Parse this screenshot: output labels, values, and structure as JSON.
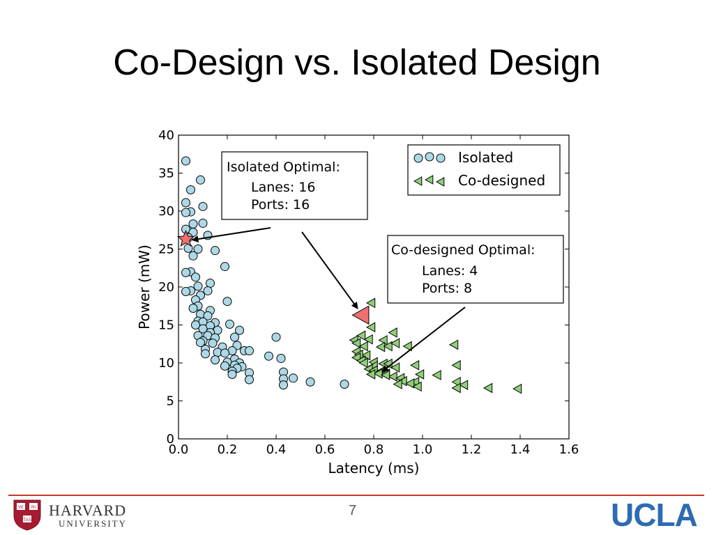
{
  "slide": {
    "title": "Co-Design vs. Isolated Design",
    "page_number": "7"
  },
  "logos": {
    "harvard_name": "HARVARD",
    "harvard_sub": "UNIVERSITY",
    "harvard_shield_text": [
      "VE",
      "RI",
      "TAS"
    ],
    "ucla": "UCLA"
  },
  "colors": {
    "isolated_fill": "#add8e6",
    "codesigned_fill": "#90d078",
    "optimal_fill": "#f07070",
    "marker_edge": "#000000",
    "footer_line": "#c0392b",
    "ucla_blue": "#2d6bb3"
  },
  "chart_data": {
    "type": "scatter",
    "xlabel": "Latency (ms)",
    "ylabel": "Power (mW)",
    "xlim": [
      0.0,
      1.6
    ],
    "ylim": [
      0,
      40
    ],
    "xticks": [
      "0.0",
      "0.2",
      "0.4",
      "0.6",
      "0.8",
      "1.0",
      "1.2",
      "1.4",
      "1.6"
    ],
    "yticks": [
      "0",
      "5",
      "10",
      "15",
      "20",
      "25",
      "30",
      "35",
      "40"
    ],
    "legend_position": "top-right",
    "series": [
      {
        "name": "Isolated",
        "marker": "circle",
        "points": [
          [
            0.03,
            36.6
          ],
          [
            0.09,
            34.1
          ],
          [
            0.05,
            32.8
          ],
          [
            0.03,
            31.1
          ],
          [
            0.1,
            30.6
          ],
          [
            0.05,
            29.9
          ],
          [
            0.03,
            29.8
          ],
          [
            0.06,
            28.3
          ],
          [
            0.1,
            28.4
          ],
          [
            0.03,
            27.6
          ],
          [
            0.06,
            27.2
          ],
          [
            0.12,
            26.8
          ],
          [
            0.04,
            26.5
          ],
          [
            0.08,
            25.0
          ],
          [
            0.04,
            25.1
          ],
          [
            0.15,
            24.8
          ],
          [
            0.06,
            24.1
          ],
          [
            0.19,
            22.7
          ],
          [
            0.05,
            22.0
          ],
          [
            0.03,
            21.9
          ],
          [
            0.07,
            21.3
          ],
          [
            0.13,
            20.5
          ],
          [
            0.08,
            20.1
          ],
          [
            0.05,
            19.5
          ],
          [
            0.03,
            19.4
          ],
          [
            0.12,
            19.5
          ],
          [
            0.09,
            18.9
          ],
          [
            0.07,
            18.3
          ],
          [
            0.2,
            18.1
          ],
          [
            0.08,
            17.5
          ],
          [
            0.06,
            17.2
          ],
          [
            0.13,
            16.9
          ],
          [
            0.09,
            16.4
          ],
          [
            0.12,
            16.2
          ],
          [
            0.08,
            15.5
          ],
          [
            0.1,
            15.4
          ],
          [
            0.15,
            15.3
          ],
          [
            0.07,
            15.0
          ],
          [
            0.13,
            14.9
          ],
          [
            0.21,
            15.1
          ],
          [
            0.1,
            14.5
          ],
          [
            0.16,
            14.3
          ],
          [
            0.13,
            14.0
          ],
          [
            0.25,
            14.3
          ],
          [
            0.08,
            13.6
          ],
          [
            0.12,
            13.6
          ],
          [
            0.15,
            13.3
          ],
          [
            0.23,
            13.4
          ],
          [
            0.1,
            12.9
          ],
          [
            0.09,
            12.7
          ],
          [
            0.14,
            12.6
          ],
          [
            0.18,
            12.1
          ],
          [
            0.24,
            12.3
          ],
          [
            0.11,
            11.8
          ],
          [
            0.16,
            11.4
          ],
          [
            0.22,
            11.6
          ],
          [
            0.27,
            11.6
          ],
          [
            0.29,
            11.6
          ],
          [
            0.11,
            11.2
          ],
          [
            0.19,
            11.3
          ],
          [
            0.15,
            10.4
          ],
          [
            0.23,
            10.5
          ],
          [
            0.2,
            10.1
          ],
          [
            0.25,
            10.0
          ],
          [
            0.37,
            10.9
          ],
          [
            0.23,
            9.7
          ],
          [
            0.19,
            9.6
          ],
          [
            0.26,
            9.5
          ],
          [
            0.24,
            9.3
          ],
          [
            0.22,
            8.9
          ],
          [
            0.22,
            8.5
          ],
          [
            0.29,
            8.7
          ],
          [
            0.29,
            7.8
          ],
          [
            0.4,
            13.4
          ],
          [
            0.42,
            10.6
          ],
          [
            0.43,
            8.8
          ],
          [
            0.43,
            7.9
          ],
          [
            0.43,
            7.1
          ],
          [
            0.47,
            8.0
          ],
          [
            0.54,
            7.5
          ],
          [
            0.68,
            7.2
          ]
        ]
      },
      {
        "name": "Co-designed",
        "marker": "triangle-left",
        "points": [
          [
            0.79,
            17.9
          ],
          [
            0.79,
            14.7
          ],
          [
            0.88,
            14.0
          ],
          [
            0.75,
            13.6
          ],
          [
            0.84,
            13.0
          ],
          [
            0.78,
            13.1
          ],
          [
            0.72,
            13.0
          ],
          [
            0.73,
            12.6
          ],
          [
            0.76,
            12.2
          ],
          [
            0.83,
            12.1
          ],
          [
            0.86,
            12.2
          ],
          [
            0.89,
            12.6
          ],
          [
            0.94,
            12.2
          ],
          [
            1.13,
            12.4
          ],
          [
            0.73,
            11.5
          ],
          [
            0.77,
            11.0
          ],
          [
            0.74,
            11.1
          ],
          [
            0.73,
            10.7
          ],
          [
            0.75,
            10.3
          ],
          [
            0.76,
            10.0
          ],
          [
            0.8,
            10.1
          ],
          [
            0.8,
            9.6
          ],
          [
            0.84,
            9.9
          ],
          [
            0.86,
            9.9
          ],
          [
            0.89,
            9.4
          ],
          [
            0.97,
            9.7
          ],
          [
            1.14,
            9.7
          ],
          [
            0.78,
            9.2
          ],
          [
            0.8,
            9.0
          ],
          [
            0.83,
            8.9
          ],
          [
            0.85,
            8.6
          ],
          [
            0.82,
            8.6
          ],
          [
            0.88,
            8.2
          ],
          [
            0.91,
            8.0
          ],
          [
            0.99,
            8.5
          ],
          [
            1.06,
            8.4
          ],
          [
            0.79,
            8.5
          ],
          [
            0.85,
            8.4
          ],
          [
            0.92,
            7.6
          ],
          [
            0.97,
            7.5
          ],
          [
            0.9,
            7.2
          ],
          [
            1.14,
            7.5
          ],
          [
            1.17,
            7.1
          ],
          [
            0.95,
            7.3
          ],
          [
            0.98,
            6.9
          ],
          [
            1.14,
            6.7
          ],
          [
            1.27,
            6.7
          ],
          [
            1.39,
            6.6
          ]
        ]
      },
      {
        "name": "Isolated Optimal point",
        "marker": "star",
        "points": [
          [
            0.03,
            26.3
          ]
        ]
      },
      {
        "name": "Co-designed Optimal point",
        "marker": "triangle-left-large",
        "points": [
          [
            0.75,
            16.3
          ]
        ]
      }
    ],
    "annotations": [
      {
        "id": "isolated-optimal",
        "lines": [
          "Isolated Optimal:",
          "Lanes: 16",
          "Ports: 16"
        ],
        "arrow_to": [
          0.03,
          26.3
        ],
        "second_arrow_to": [
          0.75,
          16.3
        ]
      },
      {
        "id": "codesigned-optimal",
        "lines": [
          "Co-designed Optimal:",
          "Lanes: 4",
          "Ports: 8"
        ],
        "arrow_to": [
          0.83,
          8.7
        ]
      }
    ]
  }
}
